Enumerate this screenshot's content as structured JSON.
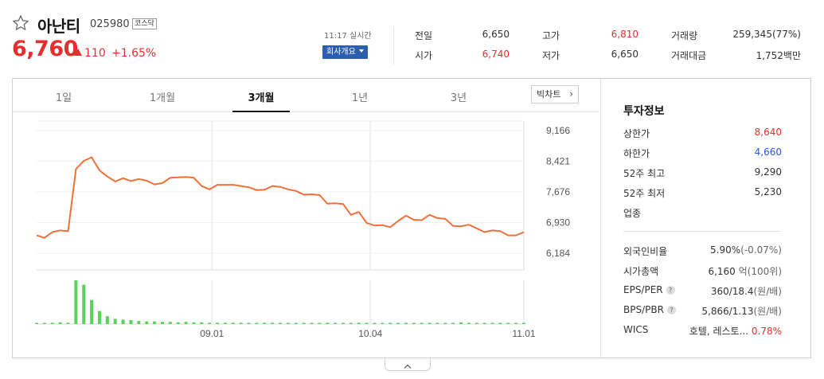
{
  "header": {
    "name": "아난티",
    "code": "025980",
    "market": "코스닥",
    "price": "6,760",
    "change": "110",
    "change_pct": "+1.65%",
    "time": "11:17 실시간",
    "company_button": "회사개요"
  },
  "quotes": {
    "prev_label": "전일",
    "prev": "6,650",
    "open_label": "시가",
    "open": "6,740",
    "high_label": "고가",
    "high": "6,810",
    "low_label": "저가",
    "low": "6,650",
    "volume_label": "거래량",
    "volume": "259,345(77%)",
    "amount_label": "거래대금",
    "amount": "1,752백만"
  },
  "tabs": [
    "1일",
    "1개월",
    "3개월",
    "1년",
    "3년"
  ],
  "active_tab": "3개월",
  "bigchart_label": "빅차트",
  "chart_data": {
    "type": "line",
    "y_ticks": [
      "9,166",
      "8,421",
      "7,676",
      "6,930",
      "6,184"
    ],
    "ylim": [
      5780,
      9400
    ],
    "x_ticks": [
      "09.01",
      "10.04",
      "11.01"
    ],
    "prices": [
      6620,
      6560,
      6700,
      6740,
      6720,
      8230,
      8430,
      8520,
      8200,
      8050,
      7930,
      8010,
      7940,
      7990,
      7950,
      7860,
      7890,
      8020,
      8030,
      8040,
      8020,
      7820,
      7740,
      7850,
      7850,
      7850,
      7820,
      7790,
      7720,
      7730,
      7820,
      7800,
      7740,
      7700,
      7610,
      7620,
      7600,
      7390,
      7400,
      7380,
      7120,
      7190,
      6920,
      6860,
      6870,
      6820,
      6970,
      7100,
      7000,
      6990,
      7120,
      7040,
      7020,
      6850,
      6840,
      6880,
      6790,
      6700,
      6740,
      6720,
      6620,
      6620,
      6700
    ],
    "volume_rel": [
      0.02,
      0.02,
      0.03,
      0.04,
      0.03,
      1.0,
      0.9,
      0.55,
      0.3,
      0.18,
      0.12,
      0.1,
      0.09,
      0.07,
      0.06,
      0.06,
      0.05,
      0.05,
      0.04,
      0.05,
      0.04,
      0.04,
      0.03,
      0.03,
      0.03,
      0.03,
      0.03,
      0.02,
      0.02,
      0.03,
      0.03,
      0.02,
      0.02,
      0.02,
      0.02,
      0.02,
      0.02,
      0.03,
      0.02,
      0.02,
      0.02,
      0.03,
      0.02,
      0.02,
      0.02,
      0.02,
      0.02,
      0.02,
      0.02,
      0.02,
      0.02,
      0.02,
      0.02,
      0.02,
      0.04,
      0.02,
      0.02,
      0.02,
      0.02,
      0.02,
      0.02,
      0.02,
      0.02
    ],
    "line_color": "#f0703a",
    "volume_color": "#5ad35a"
  },
  "invest": {
    "title": "투자정보",
    "upper_label": "상한가",
    "upper": "8,640",
    "lower_label": "하한가",
    "lower": "4,660",
    "w52_high_label": "52주 최고",
    "w52_high": "9,290",
    "w52_low_label": "52주 최저",
    "w52_low": "5,230",
    "sector_label": "업종",
    "foreign_label": "외국인비율",
    "foreign": "5.90%",
    "foreign_sub": "(-0.07%)",
    "mcap_label": "시가총액",
    "mcap": "6,160",
    "mcap_unit": "억",
    "mcap_rank": "(100위)",
    "eps_label": "EPS/PER",
    "eps": "360/18.4",
    "eps_unit": "(원/배)",
    "bps_label": "BPS/PBR",
    "bps": "5,866/1.13",
    "bps_unit": "(원/배)",
    "wics_label": "WICS",
    "wics": "호텔, 레스토...",
    "wics_pct": "0.78%",
    "help_glyph": "?"
  },
  "colors": {
    "up": "#e62e2e",
    "down": "#2e59d0",
    "button": "#2b5fad"
  }
}
